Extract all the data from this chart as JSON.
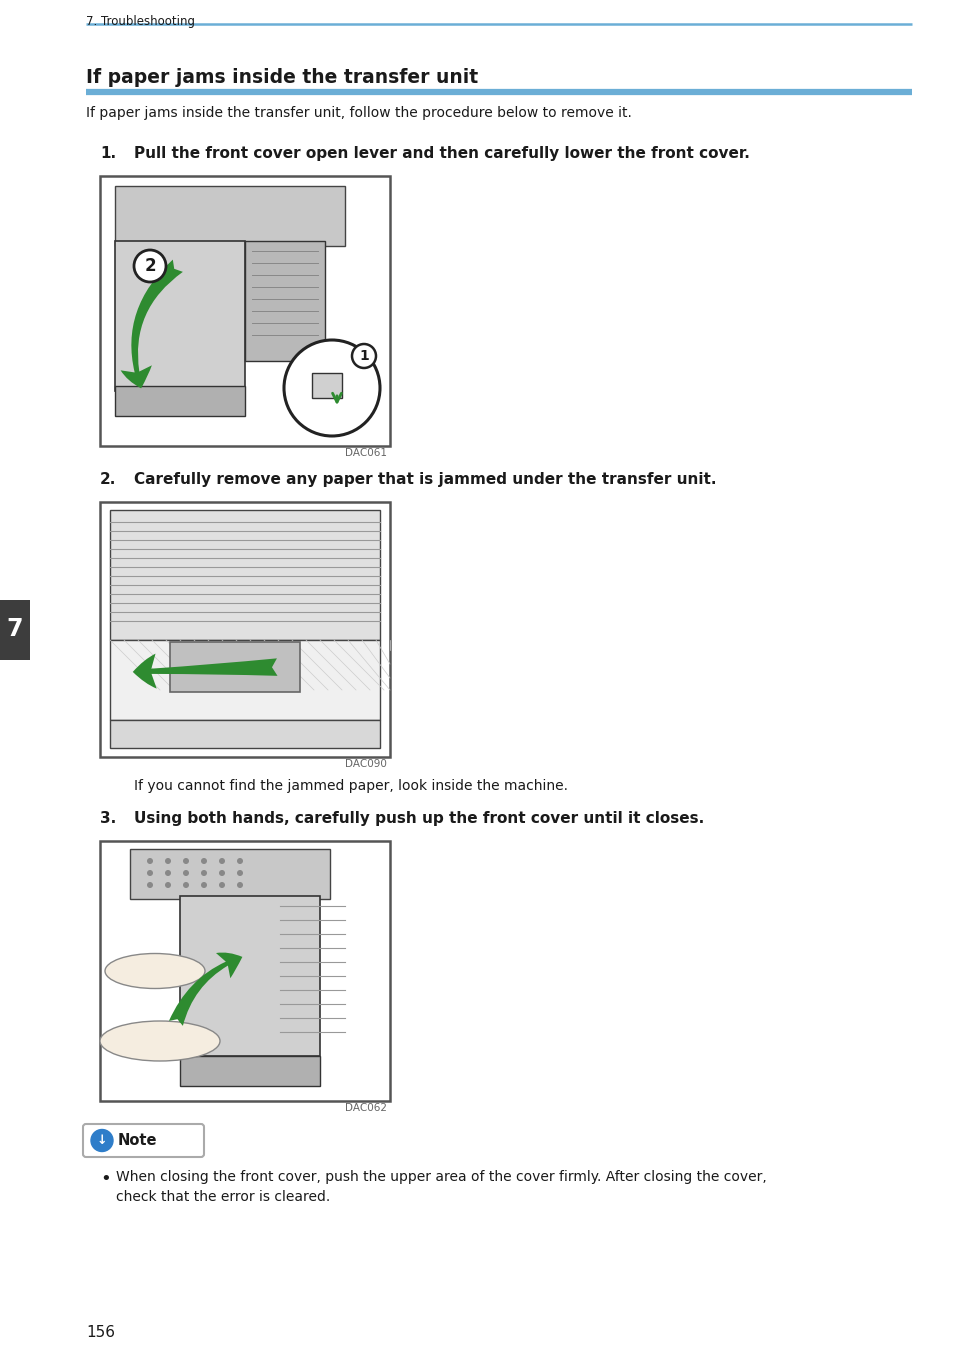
{
  "page_bg": "#ffffff",
  "header_text": "7. Troubleshooting",
  "header_line_color": "#6baed6",
  "section_title": "If paper jams inside the transfer unit",
  "section_title_line_color": "#6baed6",
  "intro_text": "If paper jams inside the transfer unit, follow the procedure below to remove it.",
  "step1_label": "1.",
  "step1_text": "Pull the front cover open lever and then carefully lower the front cover.",
  "step1_image_caption": "DAC061",
  "step2_label": "2.",
  "step2_text": "Carefully remove any paper that is jammed under the transfer unit.",
  "step2_image_caption": "DAC090",
  "step2_subtext": "If you cannot find the jammed paper, look inside the machine.",
  "step3_label": "3.",
  "step3_text": "Using both hands, carefully push up the front cover until it closes.",
  "step3_image_caption": "DAC062",
  "note_text": "Note",
  "bullet_line1": "When closing the front cover, push the upper area of the cover firmly. After closing the cover,",
  "bullet_line2": "check that the error is cleared.",
  "page_number": "156",
  "left_tab_color": "#3d3d3d",
  "left_tab_number": "7",
  "text_color": "#1a1a1a",
  "caption_color": "#666666",
  "note_icon_color": "#2e7dc9",
  "green_arrow": "#2e8b30",
  "img_border": "#555555",
  "img_bg": "#d8d8d8",
  "img_inner_bg": "#e5e5e5"
}
